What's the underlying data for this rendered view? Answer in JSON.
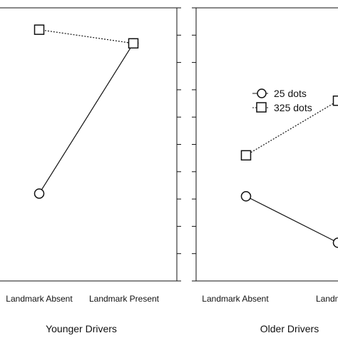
{
  "chart_data": [
    {
      "type": "line",
      "title": "",
      "xlabel": "Younger Drivers",
      "ylabel": "",
      "categories": [
        "Landmark Absent",
        "Landmark Present"
      ],
      "ylim": [
        0,
        100
      ],
      "y_ticks": [
        0,
        10,
        20,
        30,
        40,
        50,
        60,
        70,
        80,
        90,
        100
      ],
      "grid": false,
      "series": [
        {
          "name": "25 dots",
          "marker": "circle",
          "line_style": "solid",
          "values": [
            32,
            87
          ]
        },
        {
          "name": "325 dots",
          "marker": "square",
          "line_style": "dotted",
          "values": [
            92,
            87
          ]
        }
      ]
    },
    {
      "type": "line",
      "title": "",
      "xlabel": "Older Drivers",
      "ylabel": "",
      "categories": [
        "Landmark Absent",
        "Landmark Present"
      ],
      "ylim": [
        0,
        100
      ],
      "y_ticks": [
        0,
        10,
        20,
        30,
        40,
        50,
        60,
        70,
        80,
        90,
        100
      ],
      "grid": false,
      "legend": {
        "placement": "upper-left",
        "entries": [
          {
            "label": "25 dots",
            "marker": "circle",
            "line_style": "solid"
          },
          {
            "label": "325 dots",
            "marker": "square",
            "line_style": "dotted"
          }
        ]
      },
      "series": [
        {
          "name": "25 dots",
          "marker": "circle",
          "line_style": "solid",
          "values": [
            31,
            14
          ]
        },
        {
          "name": "325 dots",
          "marker": "square",
          "line_style": "dotted",
          "values": [
            46,
            66
          ]
        }
      ]
    }
  ],
  "colors": {
    "axis": "#111111",
    "line": "#111111",
    "marker_fill": "#ffffff"
  }
}
